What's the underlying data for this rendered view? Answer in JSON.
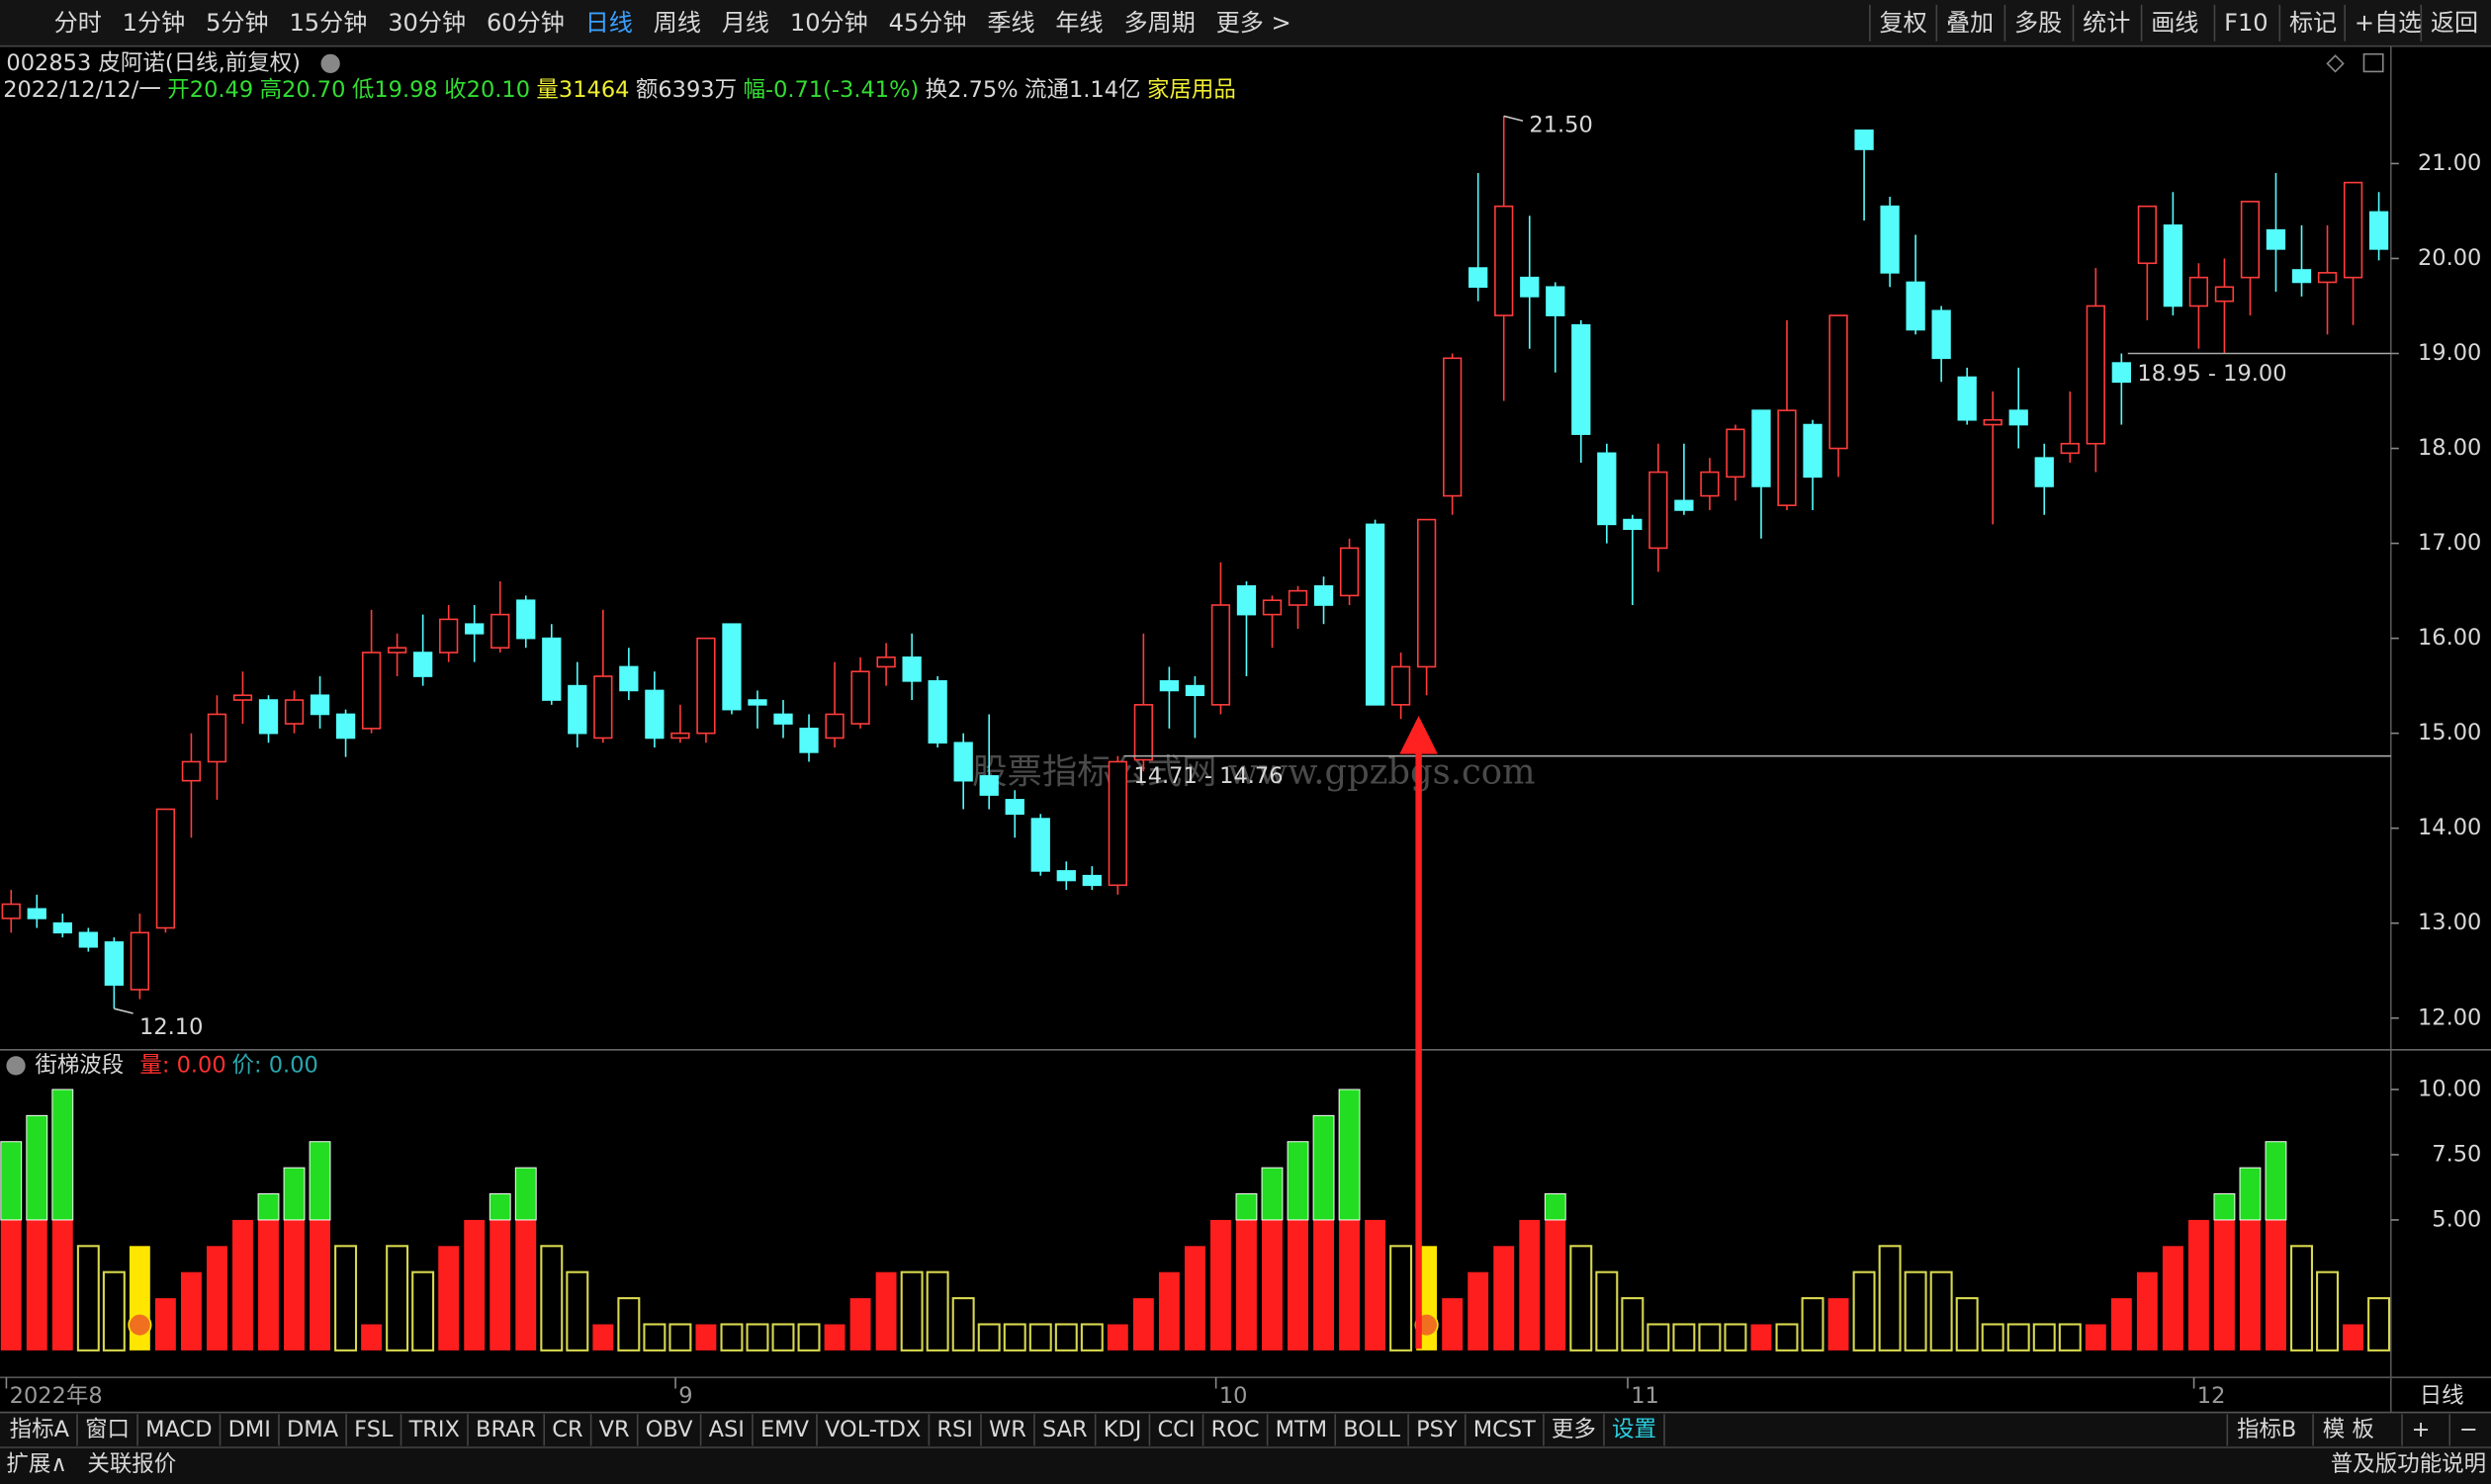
{
  "toolbar": {
    "periods": [
      "分时",
      "1分钟",
      "5分钟",
      "15分钟",
      "30分钟",
      "60分钟",
      "日线",
      "周线",
      "月线",
      "10分钟",
      "45分钟",
      "季线",
      "年线",
      "多周期",
      "更多 >"
    ],
    "tools": [
      "复权",
      "叠加",
      "多股",
      "统计",
      "画线",
      "F10",
      "标记",
      "+自选",
      "返回"
    ]
  },
  "header": {
    "stock": "002853 皮阿诺(日线,前复权)",
    "info": [
      "2022/12/12/一",
      "开20.49",
      "高20.70",
      "低19.98",
      "收20.10",
      "量31464",
      "额6393万",
      "幅-0.71(-3.41%)",
      "换2.75%",
      "流通1.14亿",
      "家居用品"
    ]
  },
  "indicator_header": {
    "name": "街梯波段",
    "volume": "量: 0.00",
    "price": "价: 0.00"
  },
  "watermark": "股票指标公式网 www.gpzbgs.com",
  "period_label": "日线",
  "tabs": [
    "指标A",
    "窗口",
    "MACD",
    "DMI",
    "DMA",
    "FSL",
    "TRIX",
    "BRAR",
    "CR",
    "VR",
    "OBV",
    "ASI",
    "EMV",
    "VOL-TDX",
    "RSI",
    "WR",
    "SAR",
    "KDJ",
    "CCI",
    "ROC",
    "MTM",
    "BOLL",
    "PSY",
    "MCST",
    "更多",
    "设置"
  ],
  "tabs_right": [
    "指标B",
    "模 板",
    "+",
    "−"
  ],
  "status": {
    "left": [
      "扩展∧",
      "关联报价"
    ],
    "right": "普及版功能说明"
  },
  "chart_data": [
    {
      "type": "candlestick",
      "categories": [
        "2022年8",
        null,
        null,
        null,
        null,
        null,
        null,
        null,
        null,
        null,
        null,
        null,
        null,
        null,
        null,
        null,
        null,
        null,
        null,
        null,
        null,
        null,
        null,
        null,
        null,
        null,
        "9",
        null,
        null,
        null,
        null,
        null,
        null,
        null,
        null,
        null,
        null,
        null,
        null,
        null,
        null,
        null,
        null,
        null,
        null,
        null,
        null,
        "10",
        null,
        null,
        null,
        null,
        null,
        null,
        null,
        null,
        null,
        null,
        null,
        null,
        null,
        null,
        null,
        "11",
        null,
        null,
        null,
        null,
        null,
        null,
        null,
        null,
        null,
        null,
        null,
        null,
        null,
        null,
        null,
        null,
        null,
        null,
        null,
        null,
        null,
        "12",
        null,
        null,
        null,
        null,
        null,
        null,
        null
      ],
      "open": [
        13.05,
        13.15,
        13.0,
        12.9,
        12.8,
        12.3,
        12.95,
        14.5,
        14.7,
        15.35,
        15.35,
        15.1,
        15.4,
        15.2,
        15.05,
        15.85,
        15.85,
        15.85,
        16.15,
        15.9,
        16.4,
        16.0,
        15.5,
        14.95,
        15.7,
        15.45,
        14.95,
        15.0,
        16.15,
        15.35,
        15.2,
        15.05,
        14.95,
        15.1,
        15.7,
        15.8,
        15.55,
        14.9,
        14.55,
        14.3,
        14.1,
        13.55,
        13.5,
        13.4,
        14.72,
        15.55,
        15.5,
        15.3,
        16.55,
        16.25,
        16.35,
        16.55,
        16.45,
        17.2,
        15.3,
        15.7,
        17.5,
        19.9,
        19.4,
        19.8,
        19.7,
        19.3,
        17.95,
        17.25,
        16.95,
        17.45,
        17.5,
        17.7,
        18.4,
        17.4,
        18.25,
        18.0,
        21.35,
        20.55,
        19.75,
        19.45,
        18.75,
        18.25,
        18.4,
        17.9,
        17.95,
        18.05,
        18.9,
        19.95,
        20.35,
        19.5,
        19.55,
        19.8,
        20.3,
        19.88,
        19.75,
        19.8,
        20.49
      ],
      "high": [
        13.35,
        13.3,
        13.1,
        12.95,
        12.85,
        13.1,
        14.2,
        15.0,
        15.4,
        15.65,
        15.4,
        15.45,
        15.6,
        15.25,
        16.3,
        16.05,
        16.25,
        16.35,
        16.35,
        16.6,
        16.45,
        16.15,
        15.75,
        16.3,
        15.9,
        15.65,
        15.3,
        16.0,
        16.15,
        15.45,
        15.35,
        15.2,
        15.75,
        15.8,
        15.95,
        16.05,
        15.6,
        15.0,
        15.2,
        14.4,
        14.15,
        13.65,
        13.6,
        14.76,
        16.05,
        15.7,
        15.6,
        16.8,
        16.6,
        16.45,
        16.55,
        16.65,
        17.05,
        17.25,
        15.85,
        17.25,
        19.0,
        20.9,
        21.5,
        20.45,
        19.75,
        19.35,
        18.05,
        17.3,
        18.05,
        18.05,
        17.9,
        18.25,
        18.4,
        19.35,
        18.3,
        19.4,
        21.35,
        20.65,
        20.25,
        19.5,
        18.85,
        18.6,
        18.85,
        18.05,
        18.6,
        19.9,
        19.0,
        20.55,
        20.7,
        19.95,
        20.0,
        20.6,
        20.9,
        20.35,
        20.35,
        20.8,
        20.7
      ],
      "low": [
        12.9,
        12.95,
        12.85,
        12.7,
        12.1,
        12.2,
        12.9,
        13.9,
        14.3,
        15.1,
        14.9,
        15.0,
        15.05,
        14.75,
        15.0,
        15.6,
        15.5,
        15.75,
        15.75,
        15.85,
        15.9,
        15.3,
        14.85,
        14.9,
        15.35,
        14.85,
        14.9,
        14.9,
        15.2,
        15.05,
        14.95,
        14.7,
        14.85,
        15.05,
        15.5,
        15.35,
        14.85,
        14.2,
        14.2,
        13.9,
        13.5,
        13.35,
        13.35,
        13.3,
        14.6,
        15.05,
        14.95,
        15.2,
        15.6,
        15.9,
        16.1,
        16.15,
        16.35,
        15.3,
        15.15,
        15.4,
        17.3,
        19.55,
        18.5,
        19.05,
        18.8,
        17.85,
        17.0,
        16.35,
        16.7,
        17.3,
        17.35,
        17.45,
        17.05,
        17.35,
        17.35,
        17.7,
        20.4,
        19.7,
        19.2,
        18.7,
        18.25,
        17.2,
        18.0,
        17.3,
        17.85,
        17.75,
        18.25,
        19.35,
        19.4,
        19.05,
        19.0,
        19.4,
        19.65,
        19.6,
        19.2,
        19.3,
        19.98
      ],
      "close": [
        13.2,
        13.05,
        12.9,
        12.75,
        12.35,
        12.9,
        14.2,
        14.7,
        15.2,
        15.4,
        15.0,
        15.35,
        15.2,
        14.95,
        15.85,
        15.9,
        15.6,
        16.2,
        16.05,
        16.25,
        16.0,
        15.35,
        15.0,
        15.6,
        15.45,
        14.95,
        15.0,
        16.0,
        15.25,
        15.3,
        15.1,
        14.8,
        15.2,
        15.65,
        15.8,
        15.55,
        14.9,
        14.5,
        14.35,
        14.15,
        13.55,
        13.45,
        13.4,
        14.7,
        15.3,
        15.45,
        15.4,
        16.35,
        16.25,
        16.4,
        16.5,
        16.35,
        16.95,
        15.3,
        15.7,
        17.25,
        18.95,
        19.7,
        20.55,
        19.6,
        19.4,
        18.15,
        17.2,
        17.15,
        17.75,
        17.35,
        17.75,
        18.2,
        17.6,
        18.4,
        17.7,
        19.4,
        21.15,
        19.85,
        19.25,
        18.95,
        18.3,
        18.3,
        18.25,
        17.6,
        18.05,
        19.5,
        18.7,
        20.55,
        19.5,
        19.8,
        19.7,
        20.6,
        20.1,
        19.75,
        19.85,
        20.8,
        20.1
      ],
      "up_color": "#ff3c3c",
      "down_color": "#54fcfc",
      "ylim": [
        11.7,
        22.22
      ],
      "yticks": [
        {
          "value": 12,
          "label": "12.00"
        },
        {
          "value": 13,
          "label": "13.00"
        },
        {
          "value": 14,
          "label": "14.00"
        },
        {
          "value": 15,
          "label": "15.00"
        },
        {
          "value": 16,
          "label": "16.00"
        },
        {
          "value": 17,
          "label": "17.00"
        },
        {
          "value": 18,
          "label": "18.00"
        },
        {
          "value": 19,
          "label": "19.00"
        },
        {
          "value": 20,
          "label": "20.00"
        },
        {
          "value": 21,
          "label": "21.00"
        }
      ],
      "high_label": "21.50",
      "low_label": "12.10",
      "annotations": [
        {
          "label": "14.71 - 14.76",
          "value": 14.76
        },
        {
          "label": "18.95 - 19.00",
          "value": 19.0
        }
      ]
    },
    {
      "type": "bar",
      "values": [
        8,
        9,
        10,
        4,
        3,
        4,
        2,
        3,
        4,
        5,
        6,
        7,
        8,
        4,
        1,
        4,
        3,
        4,
        5,
        6,
        7,
        4,
        3,
        1,
        2,
        1,
        1,
        1,
        1,
        1,
        1,
        1,
        1,
        2,
        3,
        3,
        3,
        2,
        1,
        1,
        1,
        1,
        1,
        1,
        2,
        3,
        4,
        5,
        6,
        7,
        8,
        9,
        10,
        5,
        4,
        4,
        2,
        3,
        4,
        5,
        6,
        4,
        3,
        2,
        1,
        1,
        1,
        1,
        1,
        1,
        2,
        2,
        3,
        4,
        3,
        3,
        2,
        1,
        1,
        1,
        1,
        1,
        2,
        3,
        4,
        5,
        6,
        7,
        8,
        4,
        3,
        1,
        2
      ],
      "colors": [
        "#ff1e1e",
        "#ff1e1e",
        "#ff1e1e",
        "#d8d850",
        "#d8d850",
        "#ffe600",
        "#ff1e1e",
        "#ff1e1e",
        "#ff1e1e",
        "#ff1e1e",
        "#ff1e1e",
        "#ff1e1e",
        "#ff1e1e",
        "#d8d850",
        "#ff1e1e",
        "#d8d850",
        "#d8d850",
        "#ff1e1e",
        "#ff1e1e",
        "#ff1e1e",
        "#ff1e1e",
        "#d8d850",
        "#d8d850",
        "#ff1e1e",
        "#d8d850",
        "#d8d850",
        "#d8d850",
        "#ff1e1e",
        "#d8d850",
        "#d8d850",
        "#d8d850",
        "#d8d850",
        "#ff1e1e",
        "#ff1e1e",
        "#ff1e1e",
        "#d8d850",
        "#d8d850",
        "#d8d850",
        "#d8d850",
        "#d8d850",
        "#d8d850",
        "#d8d850",
        "#d8d850",
        "#ff1e1e",
        "#ff1e1e",
        "#ff1e1e",
        "#ff1e1e",
        "#ff1e1e",
        "#ff1e1e",
        "#ff1e1e",
        "#ff1e1e",
        "#ff1e1e",
        "#ff1e1e",
        "#ff1e1e",
        "#d8d850",
        "#ffe600",
        "#ff1e1e",
        "#ff1e1e",
        "#ff1e1e",
        "#ff1e1e",
        "#ff1e1e",
        "#d8d850",
        "#d8d850",
        "#d8d850",
        "#d8d850",
        "#d8d850",
        "#d8d850",
        "#d8d850",
        "#ff1e1e",
        "#d8d850",
        "#d8d850",
        "#ff1e1e",
        "#d8d850",
        "#d8d850",
        "#d8d850",
        "#d8d850",
        "#d8d850",
        "#d8d850",
        "#d8d850",
        "#d8d850",
        "#d8d850",
        "#ff1e1e",
        "#ff1e1e",
        "#ff1e1e",
        "#ff1e1e",
        "#ff1e1e",
        "#ff1e1e",
        "#ff1e1e",
        "#ff1e1e",
        "#d8d850",
        "#d8d850",
        "#ff1e1e",
        "#d8d850"
      ],
      "hollow_color": "#d8d850",
      "signal_color": "#ffe600",
      "upper_color": "#22dd22",
      "upper_from": 5,
      "ylim": [
        0,
        11.4
      ],
      "yticks": [
        {
          "value": 5,
          "label": "5.00"
        },
        {
          "value": 7.5,
          "label": "7.50"
        },
        {
          "value": 10,
          "label": "10.00"
        }
      ]
    }
  ]
}
